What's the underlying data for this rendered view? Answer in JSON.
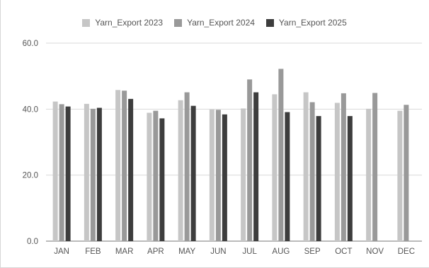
{
  "chart_data": {
    "type": "bar",
    "categories": [
      "JAN",
      "FEB",
      "MAR",
      "APR",
      "MAY",
      "JUN",
      "JUL",
      "AUG",
      "SEP",
      "OCT",
      "NOV",
      "DEC"
    ],
    "series": [
      {
        "name": "Yarn_Export 2023",
        "color": "#c6c6c6",
        "values": [
          42.3,
          41.6,
          45.8,
          38.9,
          42.7,
          39.9,
          40.2,
          44.5,
          45.1,
          41.9,
          40.1,
          39.5
        ]
      },
      {
        "name": "Yarn_Export 2024",
        "color": "#999999",
        "values": [
          41.5,
          40.1,
          45.6,
          39.5,
          45.1,
          39.8,
          49.0,
          52.2,
          42.1,
          44.8,
          44.9,
          41.3
        ]
      },
      {
        "name": "Yarn_Export 2025",
        "color": "#3d3d3d",
        "values": [
          40.8,
          40.4,
          43.1,
          37.2,
          41.0,
          38.4,
          45.1,
          39.1,
          37.9,
          37.9,
          null,
          null
        ]
      }
    ],
    "yticks": [
      "0.0",
      "20.0",
      "40.0",
      "60.0"
    ],
    "ylim": [
      0,
      60
    ],
    "grid": true,
    "legend_position": "top-center",
    "title": "",
    "xlabel": "",
    "ylabel": ""
  }
}
